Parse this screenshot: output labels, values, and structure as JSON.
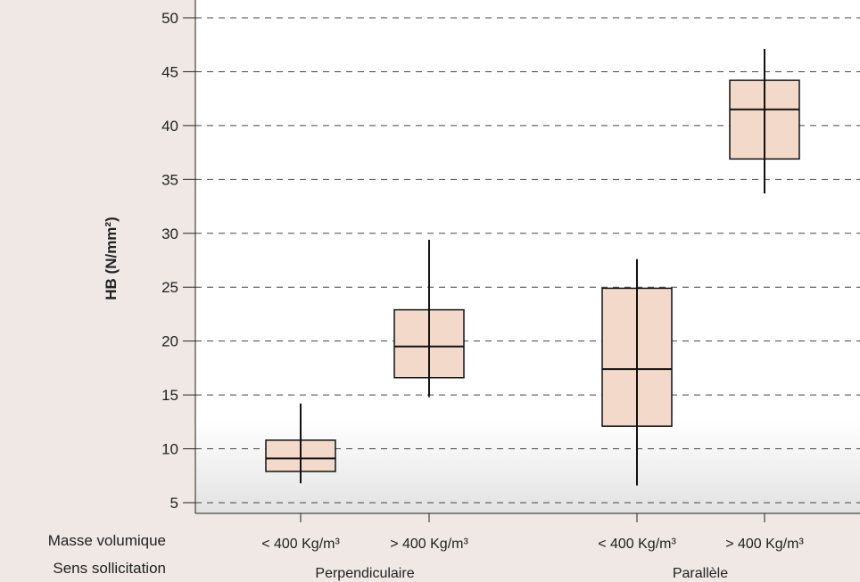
{
  "chart_data": {
    "type": "boxplot",
    "ylabel": "HB (N/mm²)",
    "ylim": [
      5,
      50
    ],
    "yticks": [
      5,
      10,
      15,
      20,
      25,
      30,
      35,
      40,
      45,
      50
    ],
    "grid": "dashed horizontal",
    "row_labels": {
      "density": "Masse volumique",
      "direction": "Sens sollicitation"
    },
    "groups": [
      {
        "label": "Perpendiculaire"
      },
      {
        "label": "Parallèle"
      }
    ],
    "boxes": [
      {
        "group": 0,
        "category": "< 400 Kg/m³",
        "min": 6.8,
        "q1": 7.9,
        "median": 9.1,
        "q3": 10.8,
        "max": 14.2
      },
      {
        "group": 0,
        "category": "> 400 Kg/m³",
        "min": 14.8,
        "q1": 16.6,
        "median": 19.5,
        "q3": 22.9,
        "max": 29.4
      },
      {
        "group": 1,
        "category": "< 400 Kg/m³",
        "min": 6.6,
        "q1": 12.1,
        "median": 17.4,
        "q3": 24.9,
        "max": 27.6
      },
      {
        "group": 1,
        "category": "> 400 Kg/m³",
        "min": 33.7,
        "q1": 36.9,
        "median": 41.5,
        "q3": 44.2,
        "max": 47.1
      }
    ],
    "colors": {
      "box_fill": "#f3d9ca",
      "box_stroke": "#111111",
      "grid": "#444444",
      "plot_bg_top": "#ffffff",
      "plot_bg_bottom": "#e2e2e2",
      "page_bg": "#efe8e4"
    }
  }
}
